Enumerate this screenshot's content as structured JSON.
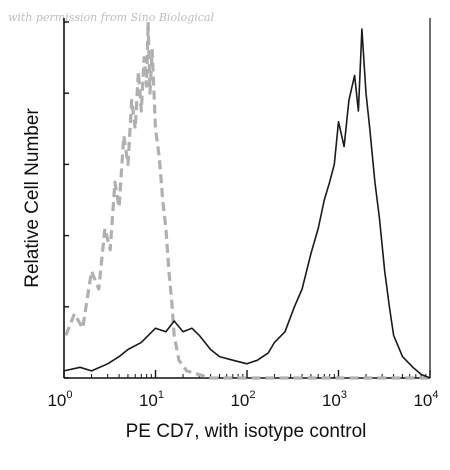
{
  "watermark": "with permission from Sino Biological",
  "chart_data": {
    "type": "line",
    "xlabel": "PE CD7, with isotype control",
    "ylabel": "Relative Cell Number",
    "x_scale": "log",
    "xlim": [
      1,
      10000
    ],
    "ylim": [
      0,
      1
    ],
    "grid": false,
    "legend": "none",
    "x_ticks": [
      {
        "value": 1,
        "base": "10",
        "exp": "0"
      },
      {
        "value": 10,
        "base": "10",
        "exp": "1"
      },
      {
        "value": 100,
        "base": "10",
        "exp": "2"
      },
      {
        "value": 1000,
        "base": "10",
        "exp": "3"
      },
      {
        "value": 10000,
        "base": "10",
        "exp": "4"
      }
    ],
    "series": [
      {
        "role": "isotype control",
        "color": "#b0b0b0",
        "style": "dashed",
        "x": [
          1.05,
          1.3,
          1.6,
          2.0,
          2.4,
          2.8,
          3.2,
          3.6,
          4.0,
          4.5,
          5.0,
          5.5,
          6.0,
          6.5,
          7.0,
          7.5,
          8.0,
          8.3,
          8.7,
          9.2,
          10.0,
          11.0,
          12.0,
          13.0,
          14.0,
          15.0,
          16.0,
          18.0,
          22.0,
          40.0,
          100.0,
          1000.0,
          10000.0
        ],
        "y": [
          0.12,
          0.18,
          0.14,
          0.3,
          0.25,
          0.42,
          0.36,
          0.55,
          0.48,
          0.68,
          0.6,
          0.78,
          0.7,
          0.86,
          0.75,
          0.9,
          0.82,
          1.0,
          0.8,
          0.92,
          0.7,
          0.62,
          0.5,
          0.42,
          0.3,
          0.22,
          0.12,
          0.05,
          0.02,
          0.0,
          0.0,
          0.0,
          0.0
        ]
      },
      {
        "role": "PE CD7",
        "color": "#1a1a1a",
        "style": "solid",
        "x": [
          1.0,
          1.5,
          2.0,
          3.0,
          4.0,
          5.0,
          7.0,
          10.0,
          13.0,
          16.0,
          20.0,
          25.0,
          30.0,
          40.0,
          50.0,
          70.0,
          100.0,
          130.0,
          170.0,
          200.0,
          260.0,
          330.0,
          400.0,
          500.0,
          600.0,
          700.0,
          800.0,
          900.0,
          1000.0,
          1150.0,
          1300.0,
          1500.0,
          1650.0,
          1800.0,
          2000.0,
          2200.0,
          2500.0,
          2800.0,
          3200.0,
          3600.0,
          4000.0,
          5000.0,
          6500.0,
          8000.0,
          10000.0
        ],
        "y": [
          0.02,
          0.03,
          0.02,
          0.04,
          0.06,
          0.08,
          0.1,
          0.14,
          0.13,
          0.16,
          0.13,
          0.14,
          0.12,
          0.08,
          0.06,
          0.05,
          0.04,
          0.05,
          0.07,
          0.1,
          0.13,
          0.2,
          0.25,
          0.35,
          0.42,
          0.5,
          0.55,
          0.6,
          0.72,
          0.65,
          0.78,
          0.85,
          0.75,
          0.98,
          0.8,
          0.7,
          0.55,
          0.45,
          0.3,
          0.2,
          0.12,
          0.06,
          0.03,
          0.01,
          0.0
        ]
      }
    ]
  }
}
